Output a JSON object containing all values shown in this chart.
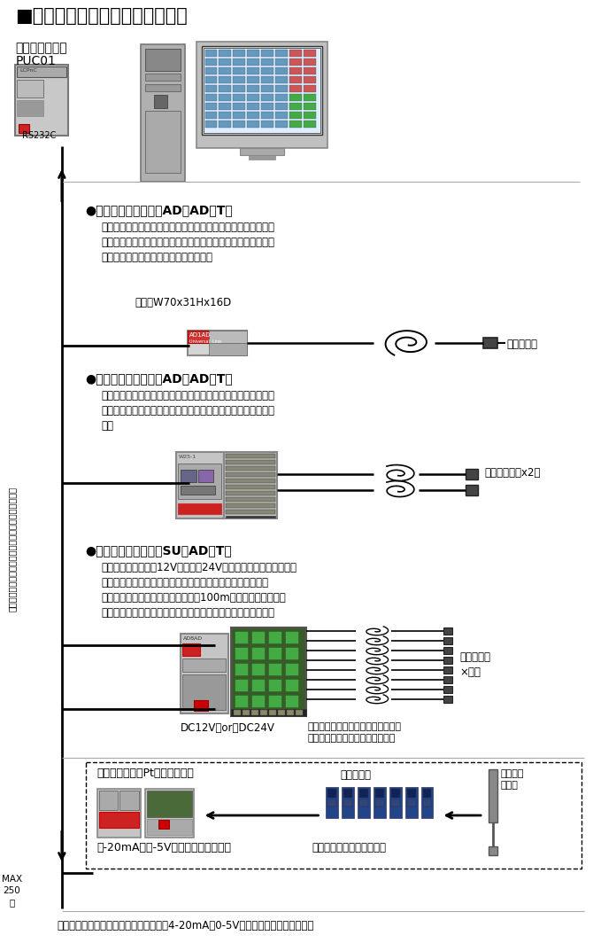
{
  "title": "■主ユニットと温度入力ユニット",
  "bg_color": "#ffffff",
  "fig_width": 6.7,
  "fig_height": 10.64,
  "left_label_vertical": "ユニバーサルライン（汎用電線を使用した多重伝送）",
  "section1_title": "●１点入力ユニット（AD１AD－T）",
  "section1_body": "信号線と電源を共用できるユニットで２本線のパラレル接続で\n個別に温度データの取込むことのできるユニットです。接続は\n付属のコネクタ付ハーネスで行います。",
  "section1_size": "寸法　W70x31Hx16D",
  "section1_sensor": "温度センサ",
  "section2_title": "●２点入力ユニット（AD２AD－T）",
  "section2_body": "このタイプも信号線と電源を共用できるユニットです。２点の\n温度センサを接続することができます。接続は端子台で行いま\nす。",
  "section2_sensor": "温度センサ　x2点",
  "section3_title": "●８点入力ユニット（SU８AD－T）",
  "section3_body": "このタイプは電源（12Vもしくは24V）が必要です。伝送線のパ\nラレル接続で１台あたり８点の温度計測が可能になります。\nセンサの線は中継して汎用の電線で100m以上延ばすことがで\nきますので多点の管理に便利です。接続は端子台で行います。",
  "section3_sensor": "温度センサ\n×８点",
  "section3_power": "DC12V　or　DC24V",
  "section3_power_note": "電源は線に余裕があれば４芯で配線\nして元送りとすれば経済的です。",
  "section4_title": "市販の熱電対やPtセンサの場合",
  "section4_converter": "各種変換器",
  "section4_sensor_label": "各種市販\nセンサ",
  "section4_unit_label": "４-20mA、０-5V入力タイプユニット",
  "section4_company": "（渴）エムシステム技研等",
  "bottom_note": "１点、２点、８点タイプ、サーミスタ、4-20mA、0-5Vタイプの混在が可能です。",
  "transmitter_label": "伝送主ユニット",
  "transmitter_model": "PUC01",
  "rs232c_label": "RS232C"
}
